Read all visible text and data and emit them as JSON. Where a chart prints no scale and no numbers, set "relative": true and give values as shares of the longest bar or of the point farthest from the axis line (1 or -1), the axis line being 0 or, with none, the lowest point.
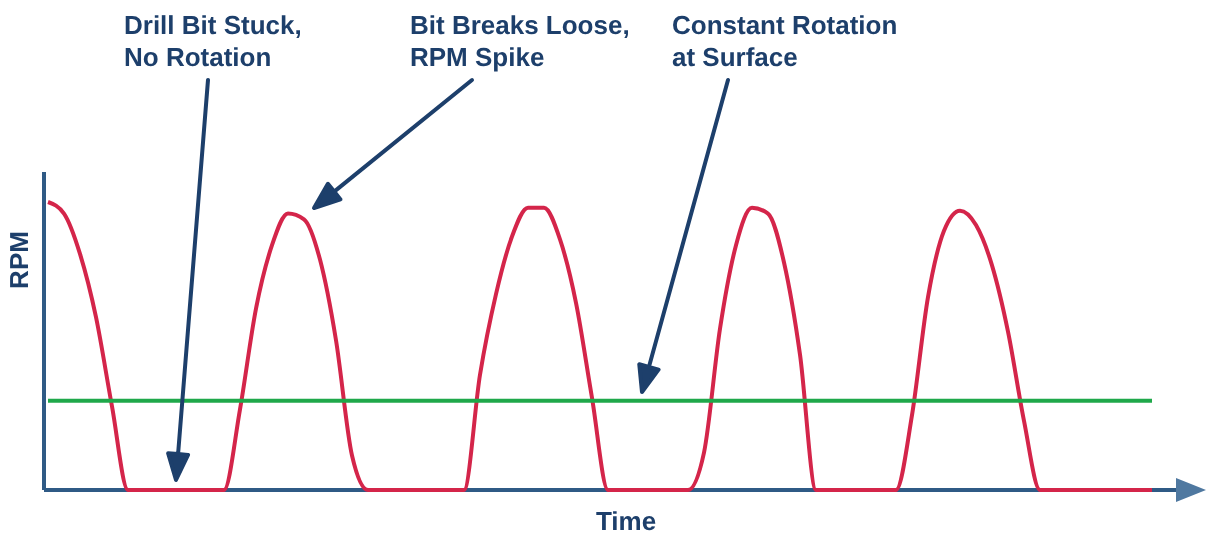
{
  "chart_data": {
    "type": "line",
    "relative": true,
    "xlabel": "Time",
    "ylabel": "RPM",
    "categories": [
      null,
      null,
      null,
      null,
      null,
      null,
      null,
      null,
      null,
      null,
      null,
      null,
      null,
      null,
      null,
      null,
      null,
      null,
      null,
      null,
      null,
      null,
      null,
      null,
      null,
      null,
      null,
      null,
      null,
      null,
      null,
      null,
      null,
      null,
      null,
      null,
      null,
      null,
      null,
      null,
      null,
      null,
      null,
      null,
      null,
      null,
      null,
      null,
      null,
      null,
      null,
      null,
      null,
      null,
      null,
      null,
      null,
      null,
      null,
      null,
      null,
      null,
      null,
      null,
      null,
      null,
      null,
      null,
      null,
      null
    ],
    "series": [
      {
        "color": "#d4254a",
        "values": [
          1,
          0.96,
          0.82,
          0.6,
          0.29,
          0,
          0,
          0,
          0,
          0,
          0,
          0,
          0.28,
          0.63,
          0.85,
          0.96,
          0.94,
          0.8,
          0.52,
          0.12,
          0,
          0,
          0,
          0,
          0,
          0,
          0,
          0.4,
          0.68,
          0.88,
          0.98,
          0.98,
          0.87,
          0.65,
          0.32,
          0,
          0,
          0,
          0,
          0,
          0,
          0.13,
          0.56,
          0.85,
          0.98,
          0.96,
          0.79,
          0.47,
          0,
          0,
          0,
          0,
          0,
          0,
          0.26,
          0.67,
          0.9,
          0.97,
          0.92,
          0.78,
          0.55,
          0.24,
          0,
          0,
          0,
          0,
          0,
          0,
          0,
          0
        ]
      },
      {
        "color": "#1fa84a",
        "values": [
          0.31,
          0.31,
          0.31,
          0.31,
          0.31,
          0.31,
          0.31,
          0.31,
          0.31,
          0.31,
          0.31,
          0.31,
          0.31,
          0.31,
          0.31,
          0.31,
          0.31,
          0.31,
          0.31,
          0.31,
          0.31,
          0.31,
          0.31,
          0.31,
          0.31,
          0.31,
          0.31,
          0.31,
          0.31,
          0.31,
          0.31,
          0.31,
          0.31,
          0.31,
          0.31,
          0.31,
          0.31,
          0.31,
          0.31,
          0.31,
          0.31,
          0.31,
          0.31,
          0.31,
          0.31,
          0.31,
          0.31,
          0.31,
          0.31,
          0.31,
          0.31,
          0.31,
          0.31,
          0.31,
          0.31,
          0.31,
          0.31,
          0.31,
          0.31,
          0.31,
          0.31,
          0.31,
          0.31,
          0.31,
          0.31,
          0.31,
          0.31,
          0.31,
          0.31,
          0.31
        ]
      }
    ],
    "annotations": [
      "Drill Bit Stuck,\nNo Rotation",
      "Bit Breaks Loose,\nRPM Spike",
      "Constant Rotation\nat Surface"
    ],
    "marker": "none",
    "line_style": "solid"
  }
}
